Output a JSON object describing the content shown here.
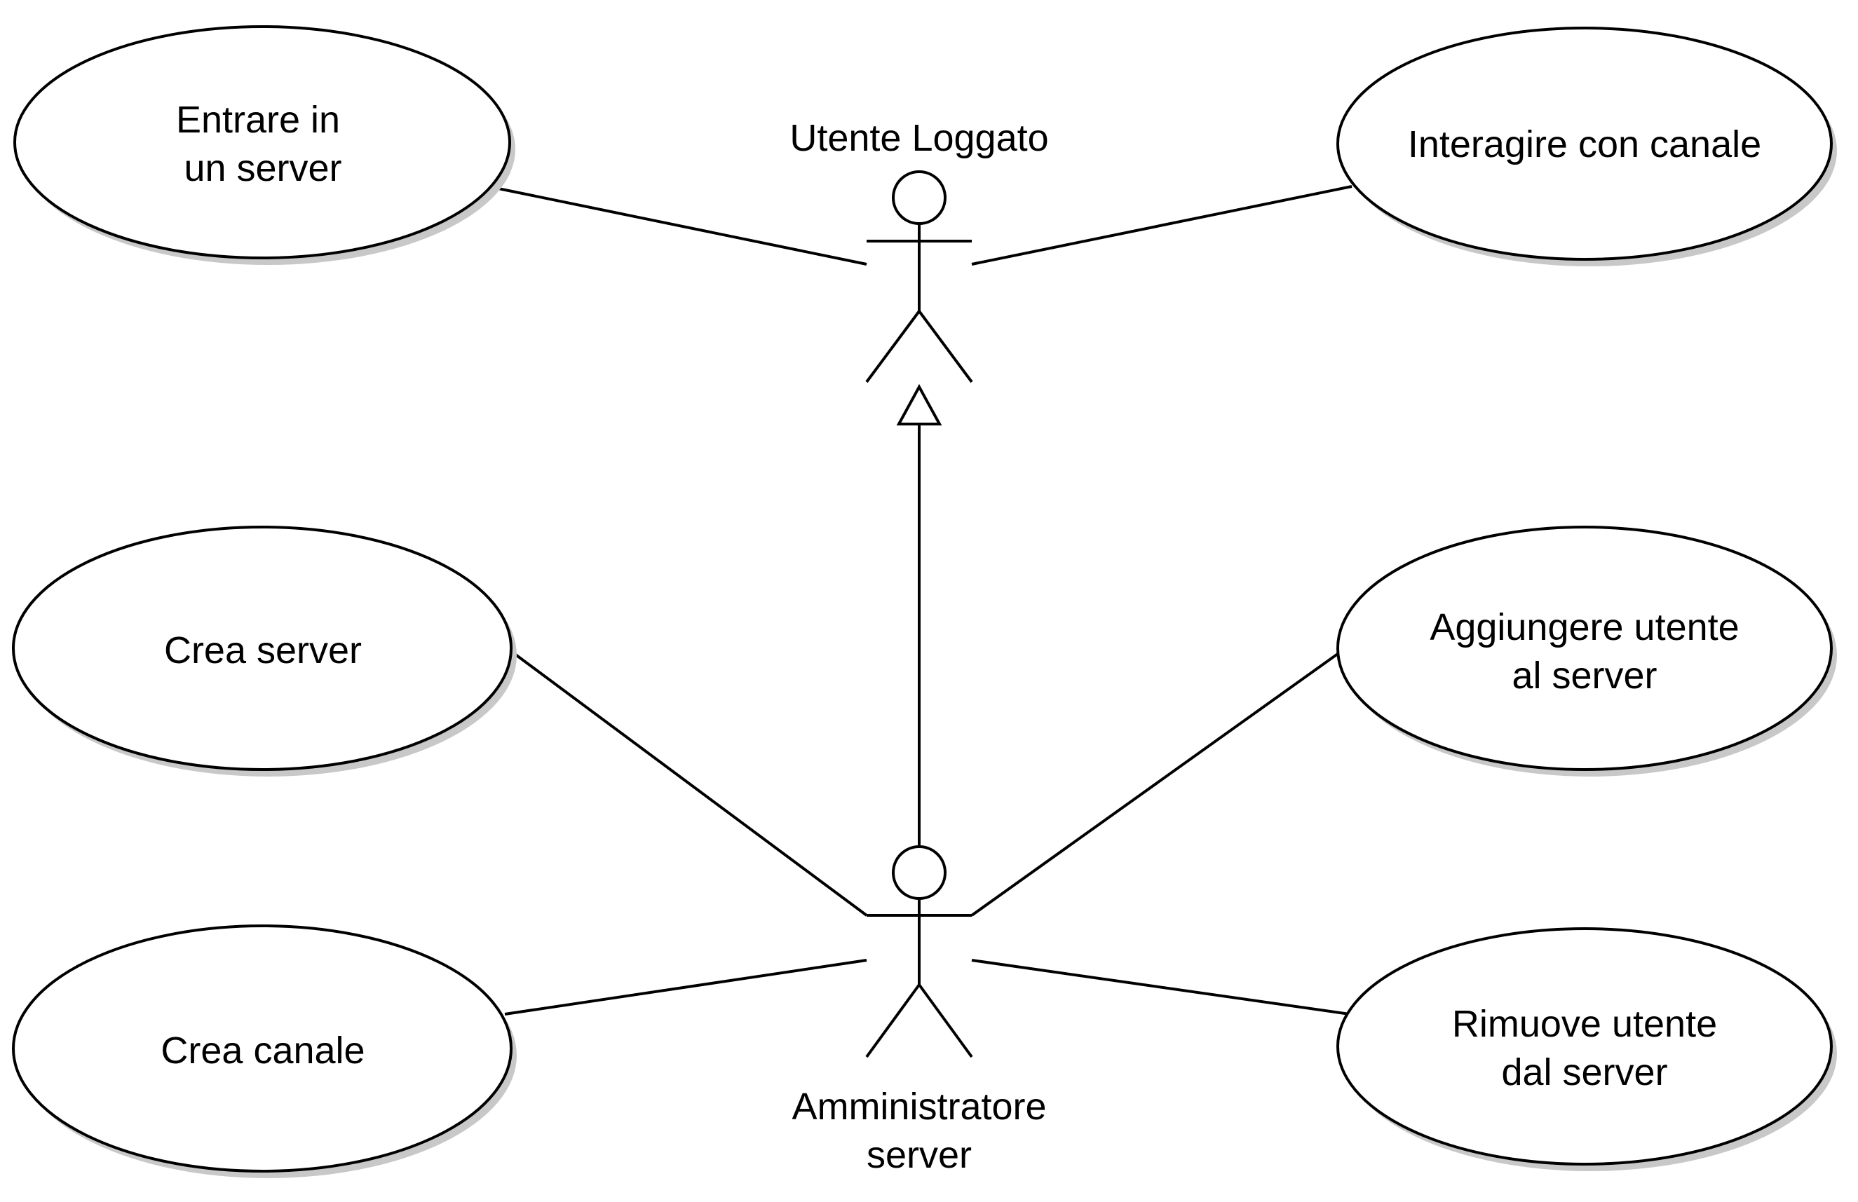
{
  "actors": {
    "utente_loggato": {
      "label": "Utente Loggato"
    },
    "amministratore": {
      "label_line1": "Amministratore",
      "label_line2": "server"
    }
  },
  "use_cases": {
    "entrare_server": {
      "line1": "Entrare in",
      "line2": "un server"
    },
    "interagire_canale": {
      "line1": "Interagire con canale"
    },
    "crea_server": {
      "line1": "Crea server"
    },
    "crea_canale": {
      "line1": "Crea canale"
    },
    "aggiungere_utente": {
      "line1": "Aggiungere utente",
      "line2": "al server"
    },
    "rimuove_utente": {
      "line1": "Rimuove utente",
      "line2": "dal server"
    }
  },
  "relations": [
    {
      "from": "utente_loggato",
      "to": "entrare_server",
      "type": "association"
    },
    {
      "from": "utente_loggato",
      "to": "interagire_canale",
      "type": "association"
    },
    {
      "from": "amministratore",
      "to": "utente_loggato",
      "type": "generalization"
    },
    {
      "from": "amministratore",
      "to": "crea_server",
      "type": "association"
    },
    {
      "from": "amministratore",
      "to": "crea_canale",
      "type": "association"
    },
    {
      "from": "amministratore",
      "to": "aggiungere_utente",
      "type": "association"
    },
    {
      "from": "amministratore",
      "to": "rimuove_utente",
      "type": "association"
    }
  ]
}
